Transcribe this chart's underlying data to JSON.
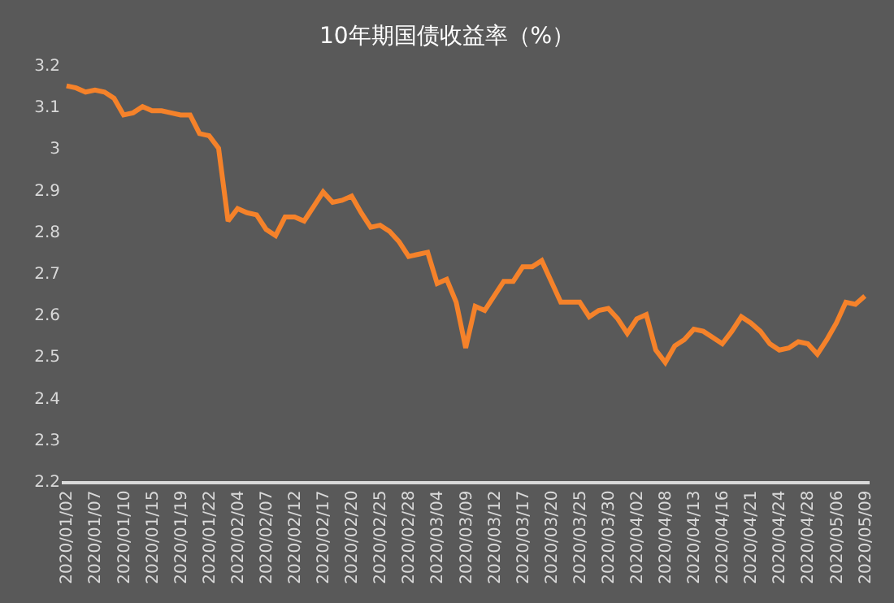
{
  "chart_data": {
    "type": "line",
    "title": "10年期国债收益率（%）",
    "categories": [
      "2020/01/02",
      null,
      null,
      "2020/01/07",
      null,
      null,
      "2020/01/10",
      null,
      null,
      "2020/01/15",
      null,
      null,
      "2020/01/19",
      null,
      null,
      "2020/01/22",
      null,
      null,
      "2020/02/04",
      null,
      null,
      "2020/02/07",
      null,
      null,
      "2020/02/12",
      null,
      null,
      "2020/02/17",
      null,
      null,
      "2020/02/20",
      null,
      null,
      "2020/02/25",
      null,
      null,
      "2020/02/28",
      null,
      null,
      "2020/03/04",
      null,
      null,
      "2020/03/09",
      null,
      null,
      "2020/03/12",
      null,
      null,
      "2020/03/17",
      null,
      null,
      "2020/03/20",
      null,
      null,
      "2020/03/25",
      null,
      null,
      "2020/03/30",
      null,
      null,
      "2020/04/02",
      null,
      null,
      "2020/04/08",
      null,
      null,
      "2020/04/13",
      null,
      null,
      "2020/04/16",
      null,
      null,
      "2020/04/21",
      null,
      null,
      "2020/04/24",
      null,
      null,
      "2020/04/28",
      null,
      null,
      "2020/05/06",
      null,
      null,
      "2020/05/09"
    ],
    "series": [
      {
        "color": "#f5822a",
        "values": [
          3.15,
          3.145,
          3.135,
          3.14,
          3.135,
          3.12,
          3.08,
          3.085,
          3.1,
          3.09,
          3.09,
          3.085,
          3.08,
          3.08,
          3.035,
          3.03,
          3.0,
          2.825,
          2.855,
          2.845,
          2.84,
          2.805,
          2.79,
          2.835,
          2.835,
          2.825,
          2.86,
          2.895,
          2.87,
          2.875,
          2.885,
          2.845,
          2.81,
          2.815,
          2.8,
          2.775,
          2.74,
          2.745,
          2.75,
          2.675,
          2.685,
          2.63,
          2.52,
          2.62,
          2.61,
          2.645,
          2.68,
          2.68,
          2.715,
          2.715,
          2.73,
          2.68,
          2.63,
          2.63,
          2.63,
          2.595,
          2.61,
          2.615,
          2.59,
          2.555,
          2.59,
          2.6,
          2.515,
          2.485,
          2.525,
          2.54,
          2.565,
          2.56,
          2.545,
          2.53,
          2.56,
          2.595,
          2.58,
          2.56,
          2.53,
          2.515,
          2.52,
          2.535,
          2.53,
          2.505,
          2.54,
          2.58,
          2.63,
          2.625,
          2.645
        ]
      }
    ],
    "ylim": [
      2.2,
      3.2
    ],
    "yticks": [
      2.2,
      2.3,
      2.4,
      2.5,
      2.6,
      2.7,
      2.8,
      2.9,
      3,
      3.1,
      3.2
    ],
    "grid": false,
    "legend": false,
    "marker": "none",
    "line_style": "solid"
  }
}
